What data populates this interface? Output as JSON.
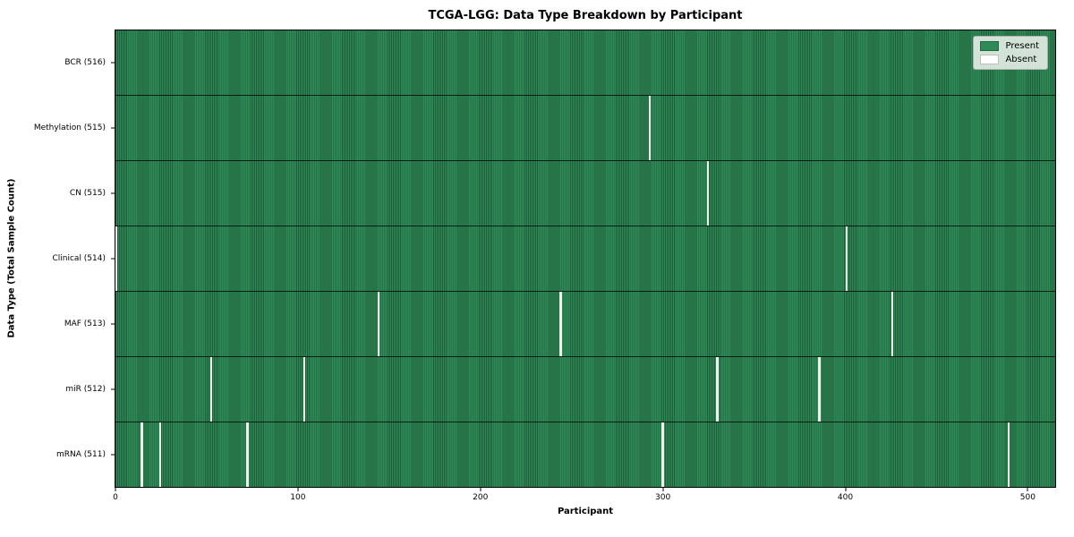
{
  "chart_data": {
    "type": "heatmap",
    "title": "TCGA-LGG: Data Type Breakdown by Participant",
    "xlabel": "Participant",
    "ylabel": "Data Type (Total Sample Count)",
    "x_ticks": [
      0,
      100,
      200,
      300,
      400,
      500
    ],
    "x_range": [
      -0.5,
      515.5
    ],
    "total_participants": 516,
    "grid": false,
    "colors": {
      "present": "#2e8b57",
      "present_edge": "#1e5c3a",
      "absent": "#f0f0ec",
      "legend_background": "#f0f4f0"
    },
    "legend": {
      "position": "upper right",
      "entries": [
        {
          "label": "Present",
          "color": "#2e8b57"
        },
        {
          "label": "Absent",
          "color": "#ffffff"
        }
      ]
    },
    "rows": [
      {
        "label": "BCR (516)",
        "data_type": "BCR",
        "total_sample_count": 516,
        "absent_participants": []
      },
      {
        "label": "Methylation (515)",
        "data_type": "Methylation",
        "total_sample_count": 515,
        "absent_participants": [
          293
        ]
      },
      {
        "label": "CN (515)",
        "data_type": "CN",
        "total_sample_count": 515,
        "absent_participants": [
          325
        ]
      },
      {
        "label": "Clinical (514)",
        "data_type": "Clinical",
        "total_sample_count": 514,
        "absent_participants": [
          0,
          401
        ]
      },
      {
        "label": "MAF (513)",
        "data_type": "MAF",
        "total_sample_count": 513,
        "absent_participants": [
          144,
          244,
          426
        ]
      },
      {
        "label": "miR (512)",
        "data_type": "miR",
        "total_sample_count": 512,
        "absent_participants": [
          52,
          103,
          330,
          386
        ]
      },
      {
        "label": "mRNA (511)",
        "data_type": "mRNA",
        "total_sample_count": 511,
        "absent_participants": [
          14,
          24,
          72,
          300,
          490
        ]
      }
    ]
  }
}
